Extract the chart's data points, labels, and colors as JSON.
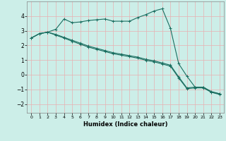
{
  "xlabel": "Humidex (Indice chaleur)",
  "background_color": "#cceee8",
  "grid_color": "#e8b0b0",
  "line_color": "#1a6e60",
  "xlim": [
    -0.5,
    23.5
  ],
  "ylim": [
    -2.6,
    5.0
  ],
  "xticks": [
    0,
    1,
    2,
    3,
    4,
    5,
    6,
    7,
    8,
    9,
    10,
    11,
    12,
    13,
    14,
    15,
    16,
    17,
    18,
    19,
    20,
    21,
    22,
    23
  ],
  "yticks": [
    -2,
    -1,
    0,
    1,
    2,
    3,
    4
  ],
  "line1_x": [
    0,
    1,
    2,
    3,
    4,
    5,
    6,
    7,
    8,
    9,
    10,
    11,
    12,
    13,
    14,
    15,
    16,
    17,
    18,
    19,
    20,
    21,
    22,
    23
  ],
  "line1_y": [
    2.5,
    2.8,
    2.9,
    3.1,
    3.8,
    3.55,
    3.6,
    3.7,
    3.75,
    3.8,
    3.65,
    3.65,
    3.65,
    3.9,
    4.1,
    4.35,
    4.5,
    3.15,
    0.75,
    -0.1,
    -0.85,
    -0.85,
    -1.2,
    -1.3
  ],
  "line2_x": [
    0,
    1,
    2,
    3,
    4,
    5,
    6,
    7,
    8,
    9,
    10,
    11,
    12,
    13,
    14,
    15,
    16,
    17,
    18,
    19,
    20,
    21,
    22,
    23
  ],
  "line2_y": [
    2.5,
    2.8,
    2.9,
    2.75,
    2.55,
    2.35,
    2.15,
    1.95,
    1.8,
    1.65,
    1.5,
    1.4,
    1.3,
    1.2,
    1.05,
    0.95,
    0.8,
    0.65,
    -0.15,
    -0.9,
    -0.85,
    -0.85,
    -1.15,
    -1.3
  ],
  "line3_x": [
    0,
    1,
    2,
    3,
    4,
    5,
    6,
    7,
    8,
    9,
    10,
    11,
    12,
    13,
    14,
    15,
    16,
    17,
    18,
    19,
    20,
    21,
    22,
    23
  ],
  "line3_y": [
    2.5,
    2.8,
    2.9,
    2.7,
    2.5,
    2.28,
    2.08,
    1.88,
    1.73,
    1.58,
    1.43,
    1.33,
    1.23,
    1.13,
    0.98,
    0.88,
    0.73,
    0.58,
    -0.22,
    -0.95,
    -0.9,
    -0.9,
    -1.2,
    -1.35
  ]
}
